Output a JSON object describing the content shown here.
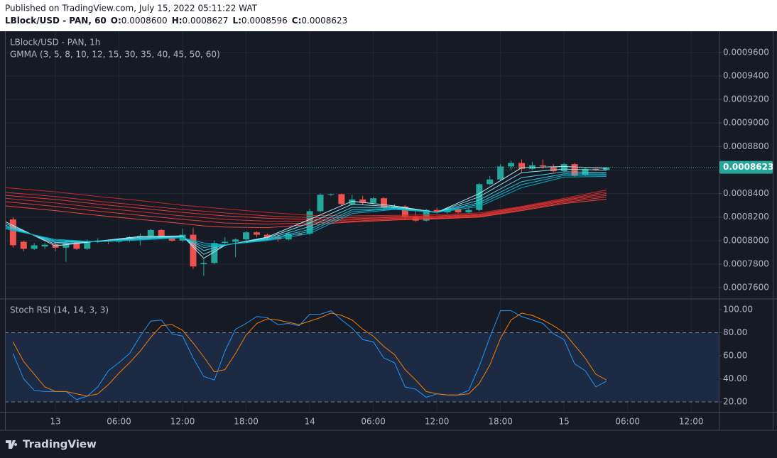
{
  "header": {
    "published": "Published on TradingView.com, July 15, 2022 05:11:22 WAT",
    "symbol": "LBlock/USD - PAN, 60",
    "ohlc": [
      {
        "key": "O:",
        "value": "0.0008600"
      },
      {
        "key": "H:",
        "value": "0.0008627"
      },
      {
        "key": "L:",
        "value": "0.0008596"
      },
      {
        "key": "C:",
        "value": "0.0008623"
      }
    ]
  },
  "chart_data": [
    {
      "type": "candlestick",
      "title": "LBlock/USD - PAN, 1h",
      "subtitle": "GMMA (3, 5, 8, 10, 12, 15, 30, 35, 40, 45, 50, 60)",
      "x": [
        -4,
        -3,
        -2,
        -1,
        0,
        1,
        2,
        3,
        4,
        5,
        6,
        7,
        8,
        9,
        10,
        11,
        12,
        13,
        14,
        15,
        16,
        17,
        18,
        19,
        20,
        21,
        22,
        23,
        24,
        25,
        26,
        27,
        28,
        29,
        30,
        31,
        32,
        33,
        34,
        35,
        36,
        37,
        38,
        39,
        40,
        41,
        42,
        43,
        44,
        45,
        46,
        47,
        48,
        49,
        50,
        51,
        52
      ],
      "open": [
        0.000818,
        0.000799,
        0.000793,
        0.000795,
        0.0007965,
        0.000794,
        0.000798,
        0.000793,
        0.000799,
        0.0008,
        0.000799,
        0.0008,
        0.000803,
        0.000804,
        0.000809,
        0.000803,
        0.0008,
        0.000805,
        0.00078,
        0.000781,
        0.000798,
        0.000799,
        0.000801,
        0.000807,
        0.000805,
        0.000803,
        0.000801,
        0.000806,
        0.000806,
        0.000825,
        0.000839,
        0.0008395,
        0.000831,
        0.000835,
        0.000832,
        0.000836,
        0.000828,
        0.000829,
        0.00082,
        0.000817,
        0.000826,
        0.000824,
        0.000827,
        0.000824,
        0.000826,
        0.000848,
        0.000852,
        0.000863,
        0.000866,
        0.000861,
        0.000864,
        0.000863,
        0.000859,
        0.000865,
        0.000856,
        0.000861,
        0.00086
      ],
      "high": [
        0.00082,
        0.0008,
        0.000798,
        0.000798,
        0.000799,
        0.0008,
        0.000799,
        0.000801,
        0.000802,
        0.000801,
        0.000801,
        0.000804,
        0.000806,
        0.00081,
        0.00081,
        0.000804,
        0.00081,
        0.000811,
        0.000784,
        0.0008,
        0.000803,
        0.000802,
        0.000808,
        0.000808,
        0.000806,
        0.000805,
        0.000807,
        0.000807,
        0.000827,
        0.00084,
        0.00084,
        0.00084,
        0.000839,
        0.000838,
        0.000837,
        0.000837,
        0.000831,
        0.00083,
        0.000826,
        0.000827,
        0.000828,
        0.000828,
        0.000828,
        0.000828,
        0.000849,
        0.000855,
        0.000865,
        0.000868,
        0.000869,
        0.000867,
        0.000869,
        0.000865,
        0.000866,
        0.000866,
        0.000862,
        0.000862,
        0.0008627
      ],
      "low": [
        0.000794,
        0.000791,
        0.000792,
        0.000793,
        0.000791,
        0.000782,
        0.000792,
        0.000792,
        0.000798,
        0.000797,
        0.000798,
        0.000799,
        0.000796,
        0.000803,
        0.000802,
        0.000799,
        0.000799,
        0.000776,
        0.00077,
        0.00078,
        0.000796,
        0.000786,
        0.0008,
        0.000803,
        0.000801,
        0.000799,
        0.0008,
        0.000804,
        0.000805,
        0.000824,
        0.000838,
        0.00083,
        0.00083,
        0.00083,
        0.000831,
        0.000826,
        0.000826,
        0.000818,
        0.000816,
        0.000816,
        0.000823,
        0.000823,
        0.000823,
        0.000823,
        0.000825,
        0.000847,
        0.000851,
        0.00086,
        0.000858,
        0.00086,
        0.000861,
        0.000858,
        0.000858,
        0.000854,
        0.000855,
        0.000859,
        0.0008596
      ],
      "close": [
        0.000796,
        0.000793,
        0.000796,
        0.0007965,
        0.000794,
        0.000798,
        0.000793,
        0.000799,
        0.0008,
        0.000799,
        0.0008,
        0.000803,
        0.000804,
        0.000809,
        0.000803,
        0.0008,
        0.000805,
        0.000778,
        0.000781,
        0.000798,
        0.000799,
        0.000801,
        0.000807,
        0.000805,
        0.000803,
        0.000801,
        0.000806,
        0.000805,
        0.000825,
        0.000839,
        0.0008395,
        0.000831,
        0.000835,
        0.000832,
        0.000836,
        0.000828,
        0.000829,
        0.00082,
        0.000817,
        0.000826,
        0.000824,
        0.000827,
        0.000824,
        0.000826,
        0.000848,
        0.000852,
        0.000863,
        0.000866,
        0.000861,
        0.000864,
        0.000863,
        0.000859,
        0.000865,
        0.000855,
        0.000861,
        0.00086,
        0.0008623
      ],
      "up_color": "#26a69a",
      "down_color": "#ef5350",
      "overlays": {
        "x": [
          -4.7,
          0,
          4,
          8,
          12,
          14,
          16,
          20,
          24,
          28,
          32,
          36,
          40,
          44,
          48,
          52
        ],
        "series": [
          {
            "color": "#c62828",
            "values": [
              0.000845,
              0.0008415,
              0.0008375,
              0.000834,
              0.00083,
              0.0008285,
              0.000827,
              0.000824,
              0.0008215,
              0.000821,
              0.0008215,
              0.000822,
              0.0008235,
              0.000829,
              0.000836,
              0.000843
            ]
          },
          {
            "color": "#d32f2f",
            "values": [
              0.000841,
              0.0008375,
              0.0008335,
              0.00083,
              0.0008265,
              0.000825,
              0.0008235,
              0.000821,
              0.0008195,
              0.0008195,
              0.0008205,
              0.000821,
              0.0008225,
              0.0008285,
              0.000835,
              0.0008415
            ]
          },
          {
            "color": "#e53935",
            "values": [
              0.0008385,
              0.000835,
              0.000831,
              0.0008275,
              0.000824,
              0.0008225,
              0.000821,
              0.000819,
              0.000818,
              0.0008185,
              0.0008198,
              0.0008203,
              0.0008218,
              0.0008278,
              0.0008343,
              0.00084
            ]
          },
          {
            "color": "#d32f2f",
            "values": [
              0.000836,
              0.000832,
              0.000828,
              0.0008245,
              0.000821,
              0.0008195,
              0.000818,
              0.0008165,
              0.0008165,
              0.0008175,
              0.000819,
              0.0008197,
              0.0008212,
              0.000827,
              0.0008335,
              0.0008385
            ]
          },
          {
            "color": "#e53935",
            "values": [
              0.000833,
              0.000829,
              0.000825,
              0.0008215,
              0.000818,
              0.0008165,
              0.000815,
              0.000814,
              0.000815,
              0.0008165,
              0.0008183,
              0.000819,
              0.0008205,
              0.0008262,
              0.0008325,
              0.000837
            ]
          },
          {
            "color": "#f44336",
            "values": [
              0.0008295,
              0.0008255,
              0.0008215,
              0.000818,
              0.0008145,
              0.0008125,
              0.0008115,
              0.000811,
              0.0008135,
              0.0008158,
              0.0008175,
              0.0008185,
              0.00082,
              0.0008255,
              0.0008315,
              0.0008352
            ]
          },
          {
            "color": "#b2ebf2",
            "values": [
              0.000816,
              0.0007955,
              0.0007995,
              0.0008035,
              0.000804,
              0.000785,
              0.000796,
              0.000803,
              0.000818,
              0.0008335,
              0.0008295,
              0.000824,
              0.00084,
              0.000862,
              0.000863,
              0.0008615
            ]
          },
          {
            "color": "#80deea",
            "values": [
              0.0008145,
              0.0007969,
              0.0007994,
              0.0008028,
              0.0008036,
              0.0007883,
              0.0007961,
              0.0008023,
              0.000815,
              0.0008309,
              0.0008288,
              0.000824,
              0.0008373,
              0.0008578,
              0.0008608,
              0.0008598
            ]
          },
          {
            "color": "#4dd0e1",
            "values": [
              0.000813,
              0.0007983,
              0.0007993,
              0.000802,
              0.0008033,
              0.0007915,
              0.0007963,
              0.0008015,
              0.000812,
              0.0008283,
              0.000828,
              0.000824,
              0.0008345,
              0.0008535,
              0.0008585,
              0.000858
            ]
          },
          {
            "color": "#26c6da",
            "values": [
              0.0008118,
              0.0007994,
              0.0007992,
              0.0008014,
              0.000803,
              0.0007941,
              0.0007964,
              0.0008009,
              0.0008096,
              0.0008262,
              0.0008274,
              0.000824,
              0.0008323,
              0.0008501,
              0.0008567,
              0.0008566
            ]
          },
          {
            "color": "#00bcd4",
            "values": [
              0.0008109,
              0.0008002,
              0.0007991,
              0.000801,
              0.0008027,
              0.0007961,
              0.0007964,
              0.0008005,
              0.0008078,
              0.0008246,
              0.000827,
              0.000824,
              0.0008307,
              0.0008476,
              0.0008554,
              0.0008556
            ]
          },
          {
            "color": "#00acc1",
            "values": [
              0.00081,
              0.000801,
              0.000799,
              0.0008005,
              0.0008025,
              0.000798,
              0.0007965,
              0.0008,
              0.000806,
              0.000823,
              0.0008265,
              0.000824,
              0.000829,
              0.000845,
              0.000854,
              0.0008545
            ]
          }
        ]
      },
      "xlim": [
        -4.76,
        62.6
      ],
      "ylim": [
        0.000751,
        0.000978
      ],
      "yticks": [
        {
          "value": 0.00076,
          "label": "0.0007600"
        },
        {
          "value": 0.00078,
          "label": "0.0007800"
        },
        {
          "value": 0.0008,
          "label": "0.0008000"
        },
        {
          "value": 0.00082,
          "label": "0.0008200"
        },
        {
          "value": 0.00084,
          "label": "0.0008400"
        },
        {
          "value": 0.00086,
          "label": "0.0008600"
        },
        {
          "value": 0.00088,
          "label": "0.0008800"
        },
        {
          "value": 0.0009,
          "label": "0.0009000"
        },
        {
          "value": 0.00092,
          "label": "0.0009200"
        },
        {
          "value": 0.00094,
          "label": "0.0009400"
        },
        {
          "value": 0.00096,
          "label": "0.0009600"
        }
      ],
      "grid": true,
      "last_price": 0.0008623,
      "last_price_color": "#26a69a"
    },
    {
      "type": "line",
      "title": "Stoch RSI (14, 14, 3, 3)",
      "x": [
        -4,
        -3,
        -2,
        -1,
        0,
        1,
        2,
        3,
        4,
        5,
        6,
        7,
        8,
        9,
        10,
        11,
        12,
        13,
        14,
        15,
        16,
        17,
        18,
        19,
        20,
        21,
        22,
        23,
        24,
        25,
        26,
        27,
        28,
        29,
        30,
        31,
        32,
        33,
        34,
        35,
        36,
        37,
        38,
        39,
        40,
        41,
        42,
        43,
        44,
        45,
        46,
        47,
        48,
        49,
        50,
        51,
        52
      ],
      "series": [
        {
          "color": "#2196f3",
          "values": [
            62,
            40,
            30,
            29,
            29,
            29,
            22,
            25,
            33,
            47,
            54,
            62,
            77,
            90,
            91,
            79,
            77,
            58,
            42,
            39,
            64,
            83,
            88,
            94,
            93,
            87,
            88,
            86,
            96,
            96,
            99,
            91,
            84,
            74,
            72,
            58,
            54,
            33,
            31,
            24,
            27,
            26,
            26,
            30,
            51,
            76,
            99,
            99,
            94,
            91,
            88,
            79,
            74,
            53,
            47,
            33,
            38
          ]
        },
        {
          "color": "#f57c00",
          "values": [
            72,
            55,
            44,
            33,
            29,
            29,
            27,
            25,
            27,
            35,
            45,
            54,
            64,
            76,
            86,
            87,
            82,
            71,
            59,
            46,
            48,
            62,
            78,
            88,
            92,
            91,
            89,
            87,
            90,
            93,
            97,
            95,
            91,
            83,
            77,
            68,
            61,
            48,
            39,
            29,
            27,
            26,
            26,
            27,
            36,
            52,
            75,
            91,
            97,
            95,
            91,
            86,
            80,
            69,
            58,
            44,
            39
          ]
        }
      ],
      "bands": [
        20,
        80
      ],
      "band_color": "#1c2a44",
      "xlim": [
        -4.76,
        62.6
      ],
      "ylim": [
        11.4,
        108.6
      ],
      "yticks": [
        {
          "value": 20,
          "label": "20.00"
        },
        {
          "value": 40,
          "label": "40.00"
        },
        {
          "value": 60,
          "label": "60.00"
        },
        {
          "value": 80,
          "label": "80.00"
        },
        {
          "value": 100,
          "label": "100.00"
        }
      ],
      "xticks": [
        {
          "value": 0,
          "label": "13"
        },
        {
          "value": 6,
          "label": "06:00"
        },
        {
          "value": 12,
          "label": "12:00"
        },
        {
          "value": 18,
          "label": "18:00"
        },
        {
          "value": 24,
          "label": "14"
        },
        {
          "value": 30,
          "label": "06:00"
        },
        {
          "value": 36,
          "label": "12:00"
        },
        {
          "value": 42,
          "label": "18:00"
        },
        {
          "value": 48,
          "label": "15"
        },
        {
          "value": 54,
          "label": "06:00"
        },
        {
          "value": 60,
          "label": "12:00"
        }
      ]
    }
  ],
  "footer": {
    "logo": "TradingView"
  }
}
